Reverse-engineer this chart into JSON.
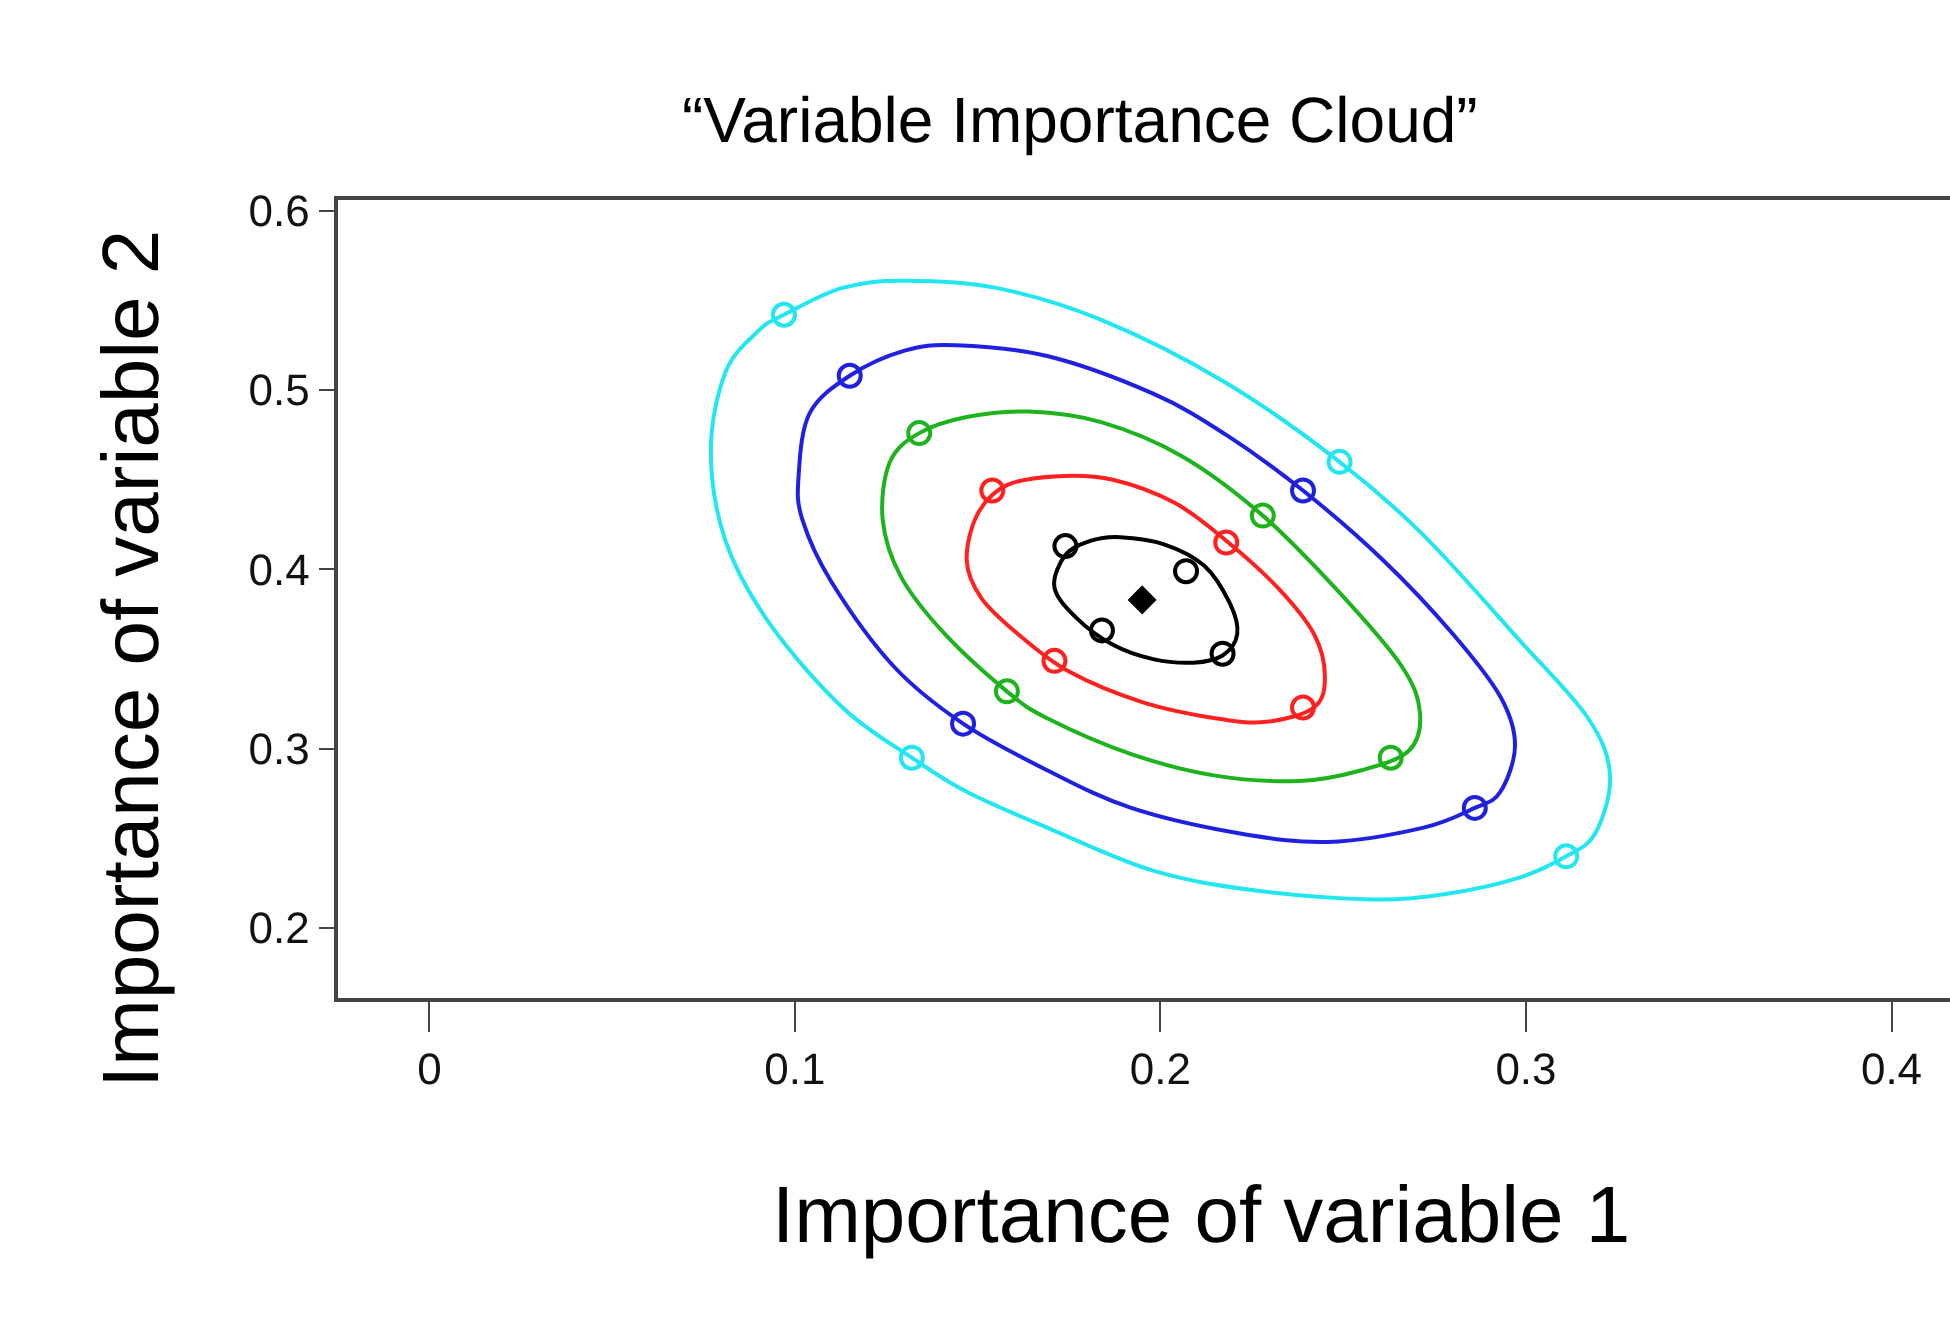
{
  "chart_data": {
    "type": "scatter",
    "title": "“Variable Importance Cloud”",
    "xlabel": "Importance of variable 1",
    "ylabel": "Importance of variable 2",
    "xlim": [
      -0.025,
      0.416
    ],
    "ylim": [
      0.161,
      0.606
    ],
    "xticks": [
      0,
      0.1,
      0.2,
      0.3,
      0.4
    ],
    "yticks": [
      0.2,
      0.3,
      0.4,
      0.5,
      0.6
    ],
    "grid": false,
    "series": [
      {
        "marker": "circle",
        "color": "#22e6f0",
        "x": [
          0.097,
          0.249,
          0.132,
          0.311
        ],
        "values": [
          0.542,
          0.46,
          0.295,
          0.24
        ]
      },
      {
        "marker": "circle",
        "color": "#2020e0",
        "x": [
          0.115,
          0.239,
          0.146,
          0.286
        ],
        "values": [
          0.508,
          0.444,
          0.314,
          0.267
        ]
      },
      {
        "marker": "circle",
        "color": "#1db31d",
        "x": [
          0.134,
          0.228,
          0.158,
          0.263
        ],
        "values": [
          0.476,
          0.43,
          0.332,
          0.295
        ]
      },
      {
        "marker": "circle",
        "color": "#ff2020",
        "x": [
          0.154,
          0.218,
          0.171,
          0.239
        ],
        "values": [
          0.444,
          0.415,
          0.349,
          0.323
        ]
      },
      {
        "marker": "circle",
        "color": "#000000",
        "x": [
          0.174,
          0.207,
          0.184,
          0.217
        ],
        "values": [
          0.413,
          0.399,
          0.366,
          0.353
        ]
      },
      {
        "marker": "diamond",
        "color": "#000000",
        "x": [
          0.195
        ],
        "values": [
          0.383
        ]
      }
    ]
  }
}
